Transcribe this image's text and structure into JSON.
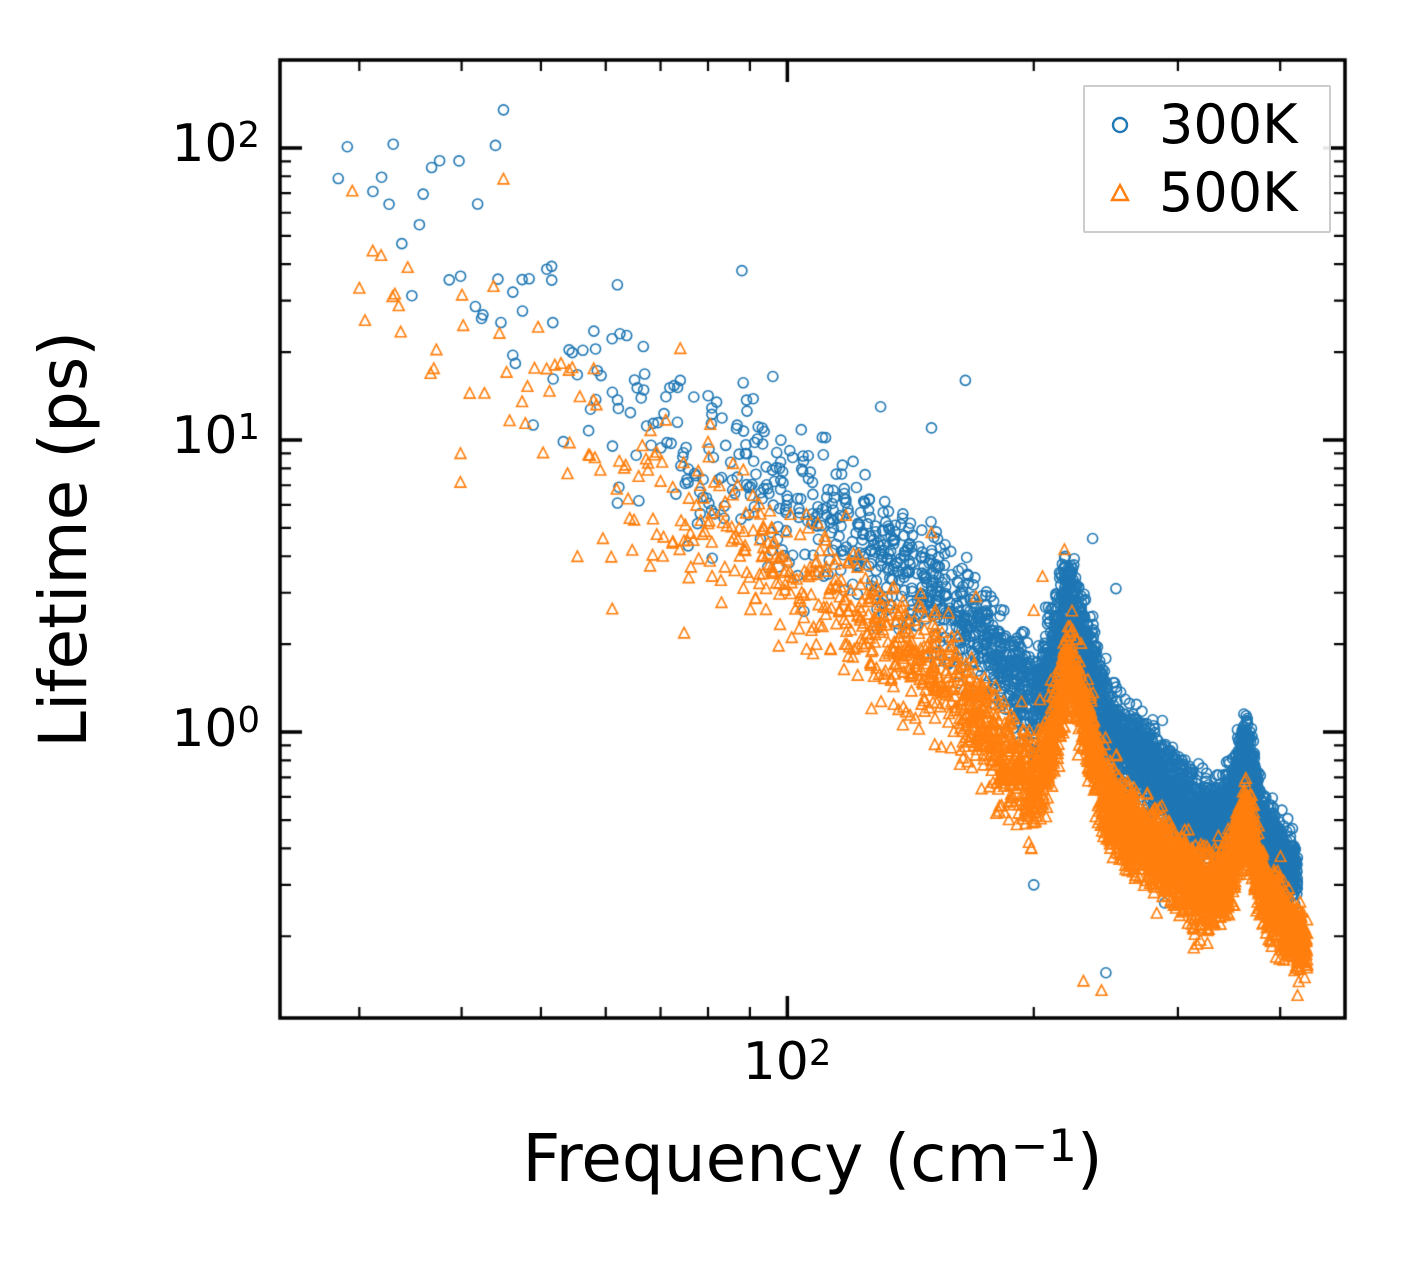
{
  "figure": {
    "background": "#ffffff",
    "frame_color": "#000000"
  },
  "axes": {
    "x": {
      "label": {
        "prefix": "Frequency (cm",
        "sup": "−1",
        "suffix": ")"
      },
      "scale": "log",
      "lim": [
        24,
        480
      ],
      "ticks": [
        {
          "base": "10",
          "exp": "2",
          "value": 100
        }
      ]
    },
    "y": {
      "label": "Lifetime (ps)",
      "scale": "log",
      "lim": [
        0.105,
        200
      ],
      "ticks": [
        {
          "base": "10",
          "exp": "2",
          "value": 100
        },
        {
          "base": "10",
          "exp": "1",
          "value": 10
        },
        {
          "base": "10",
          "exp": "0",
          "value": 1
        }
      ]
    }
  },
  "legend": {
    "border_color": "#cccccc",
    "items": [
      {
        "label": "300K",
        "marker": "circle",
        "color": "#1f77b4"
      },
      {
        "label": "500K",
        "marker": "triangle",
        "color": "#ff7f0e"
      }
    ]
  },
  "chart_data": {
    "type": "scatter",
    "title": "",
    "xlabel": "Frequency (cm^-1)",
    "ylabel": "Lifetime (ps)",
    "xscale": "log",
    "yscale": "log",
    "xlim": [
      24,
      480
    ],
    "ylim": [
      0.105,
      200
    ],
    "grid": false,
    "legend_position": "upper right",
    "series": [
      {
        "name": "300K",
        "color": "#1f77b4",
        "marker": "circle",
        "trend": [
          [
            28,
            85,
            4,
            0.2
          ],
          [
            32,
            72,
            5,
            0.2
          ],
          [
            36,
            52,
            5,
            0.2
          ],
          [
            40,
            40,
            6,
            0.2
          ],
          [
            45,
            30,
            7,
            0.18
          ],
          [
            50,
            24,
            8,
            0.18
          ],
          [
            55,
            18,
            9,
            0.16
          ],
          [
            60,
            14.5,
            10,
            0.16
          ],
          [
            65,
            12.5,
            12,
            0.15
          ],
          [
            70,
            11,
            13,
            0.14
          ],
          [
            75,
            10,
            15,
            0.14
          ],
          [
            80,
            9.2,
            17,
            0.13
          ],
          [
            85,
            8.4,
            19,
            0.13
          ],
          [
            90,
            7.6,
            22,
            0.12
          ],
          [
            95,
            7.0,
            25,
            0.12
          ],
          [
            100,
            6.3,
            28,
            0.12
          ],
          [
            108,
            5.6,
            34,
            0.11
          ],
          [
            116,
            5.0,
            40,
            0.11
          ],
          [
            124,
            4.4,
            46,
            0.11
          ],
          [
            132,
            3.9,
            52,
            0.1
          ],
          [
            140,
            3.5,
            60,
            0.1
          ],
          [
            150,
            3.0,
            70,
            0.1
          ],
          [
            160,
            2.6,
            80,
            0.1
          ],
          [
            170,
            2.2,
            90,
            0.1
          ],
          [
            180,
            1.85,
            98,
            0.1
          ],
          [
            190,
            1.5,
            105,
            0.09
          ],
          [
            200,
            1.25,
            112,
            0.09
          ],
          [
            208,
            1.65,
            108,
            0.08
          ],
          [
            215,
            2.3,
            100,
            0.08
          ],
          [
            221,
            3.0,
            92,
            0.07
          ],
          [
            227,
            2.35,
            98,
            0.08
          ],
          [
            233,
            1.8,
            104,
            0.08
          ],
          [
            240,
            1.3,
            110,
            0.08
          ],
          [
            248,
            1.05,
            114,
            0.08
          ],
          [
            256,
            0.92,
            116,
            0.07
          ],
          [
            264,
            0.85,
            118,
            0.07
          ],
          [
            272,
            0.8,
            120,
            0.07
          ],
          [
            280,
            0.75,
            120,
            0.07
          ],
          [
            290,
            0.68,
            122,
            0.07
          ],
          [
            300,
            0.6,
            124,
            0.07
          ],
          [
            310,
            0.55,
            124,
            0.07
          ],
          [
            320,
            0.5,
            126,
            0.07
          ],
          [
            330,
            0.5,
            126,
            0.07
          ],
          [
            340,
            0.52,
            126,
            0.06
          ],
          [
            350,
            0.6,
            122,
            0.06
          ],
          [
            358,
            0.8,
            115,
            0.06
          ],
          [
            364,
            0.92,
            105,
            0.05
          ],
          [
            372,
            0.62,
            114,
            0.07
          ],
          [
            380,
            0.48,
            116,
            0.06
          ],
          [
            390,
            0.42,
            114,
            0.06
          ],
          [
            400,
            0.38,
            110,
            0.06
          ],
          [
            410,
            0.35,
            105,
            0.05
          ],
          [
            420,
            0.32,
            60,
            0.05
          ]
        ],
        "outliers": [
          [
            45,
            135
          ],
          [
            44,
            102
          ],
          [
            33,
            103
          ],
          [
            62,
            34
          ],
          [
            74,
            16
          ],
          [
            88,
            38
          ],
          [
            96,
            16.5
          ],
          [
            130,
            13
          ],
          [
            150,
            11
          ],
          [
            165,
            16
          ],
          [
            200,
            0.3
          ],
          [
            245,
            0.15
          ],
          [
            236,
            4.6
          ],
          [
            252,
            3.1
          ],
          [
            289,
            0.26
          ]
        ]
      },
      {
        "name": "500K",
        "color": "#ff7f0e",
        "marker": "triangle",
        "trend": [
          [
            28,
            45,
            4,
            0.16
          ],
          [
            32,
            38,
            5,
            0.18
          ],
          [
            36,
            28,
            5,
            0.2
          ],
          [
            40,
            21,
            6,
            0.2
          ],
          [
            45,
            16,
            7,
            0.18
          ],
          [
            50,
            12.5,
            8,
            0.18
          ],
          [
            55,
            9.8,
            9,
            0.16
          ],
          [
            60,
            8.0,
            10,
            0.16
          ],
          [
            65,
            7.0,
            12,
            0.15
          ],
          [
            70,
            6.2,
            13,
            0.14
          ],
          [
            75,
            5.6,
            15,
            0.14
          ],
          [
            80,
            5.1,
            17,
            0.13
          ],
          [
            85,
            4.7,
            19,
            0.13
          ],
          [
            90,
            4.3,
            22,
            0.12
          ],
          [
            95,
            3.9,
            25,
            0.12
          ],
          [
            100,
            3.5,
            28,
            0.12
          ],
          [
            108,
            3.1,
            34,
            0.11
          ],
          [
            116,
            2.75,
            40,
            0.11
          ],
          [
            124,
            2.45,
            46,
            0.11
          ],
          [
            132,
            2.15,
            52,
            0.1
          ],
          [
            140,
            1.9,
            60,
            0.1
          ],
          [
            150,
            1.62,
            70,
            0.1
          ],
          [
            160,
            1.35,
            80,
            0.1
          ],
          [
            170,
            1.1,
            90,
            0.1
          ],
          [
            180,
            0.9,
            98,
            0.1
          ],
          [
            190,
            0.72,
            105,
            0.09
          ],
          [
            200,
            0.62,
            112,
            0.09
          ],
          [
            208,
            0.82,
            108,
            0.08
          ],
          [
            215,
            1.2,
            100,
            0.08
          ],
          [
            221,
            1.7,
            92,
            0.07
          ],
          [
            227,
            1.32,
            98,
            0.08
          ],
          [
            233,
            0.98,
            104,
            0.08
          ],
          [
            240,
            0.72,
            110,
            0.08
          ],
          [
            248,
            0.57,
            114,
            0.08
          ],
          [
            256,
            0.49,
            116,
            0.07
          ],
          [
            264,
            0.45,
            118,
            0.07
          ],
          [
            272,
            0.43,
            120,
            0.07
          ],
          [
            280,
            0.41,
            120,
            0.07
          ],
          [
            290,
            0.37,
            122,
            0.07
          ],
          [
            300,
            0.34,
            124,
            0.07
          ],
          [
            310,
            0.31,
            124,
            0.07
          ],
          [
            320,
            0.285,
            126,
            0.07
          ],
          [
            330,
            0.285,
            126,
            0.07
          ],
          [
            340,
            0.3,
            126,
            0.06
          ],
          [
            350,
            0.34,
            122,
            0.06
          ],
          [
            358,
            0.45,
            115,
            0.06
          ],
          [
            364,
            0.53,
            105,
            0.05
          ],
          [
            372,
            0.37,
            114,
            0.07
          ],
          [
            380,
            0.3,
            116,
            0.06
          ],
          [
            390,
            0.26,
            114,
            0.06
          ],
          [
            400,
            0.235,
            110,
            0.06
          ],
          [
            410,
            0.215,
            105,
            0.05
          ],
          [
            420,
            0.195,
            80,
            0.05
          ],
          [
            432,
            0.18,
            40,
            0.05
          ]
        ],
        "outliers": [
          [
            45,
            78
          ],
          [
            30,
            33
          ],
          [
            52,
            18
          ],
          [
            58,
            17.5
          ],
          [
            74,
            20.5
          ],
          [
            80,
            9.8
          ],
          [
            150,
            4.8
          ],
          [
            170,
            2.9
          ],
          [
            205,
            3.4
          ],
          [
            218,
            4.2
          ],
          [
            200,
            2.6
          ],
          [
            242,
            0.13
          ],
          [
            230,
            0.14
          ],
          [
            420,
            0.125
          ]
        ]
      }
    ]
  }
}
